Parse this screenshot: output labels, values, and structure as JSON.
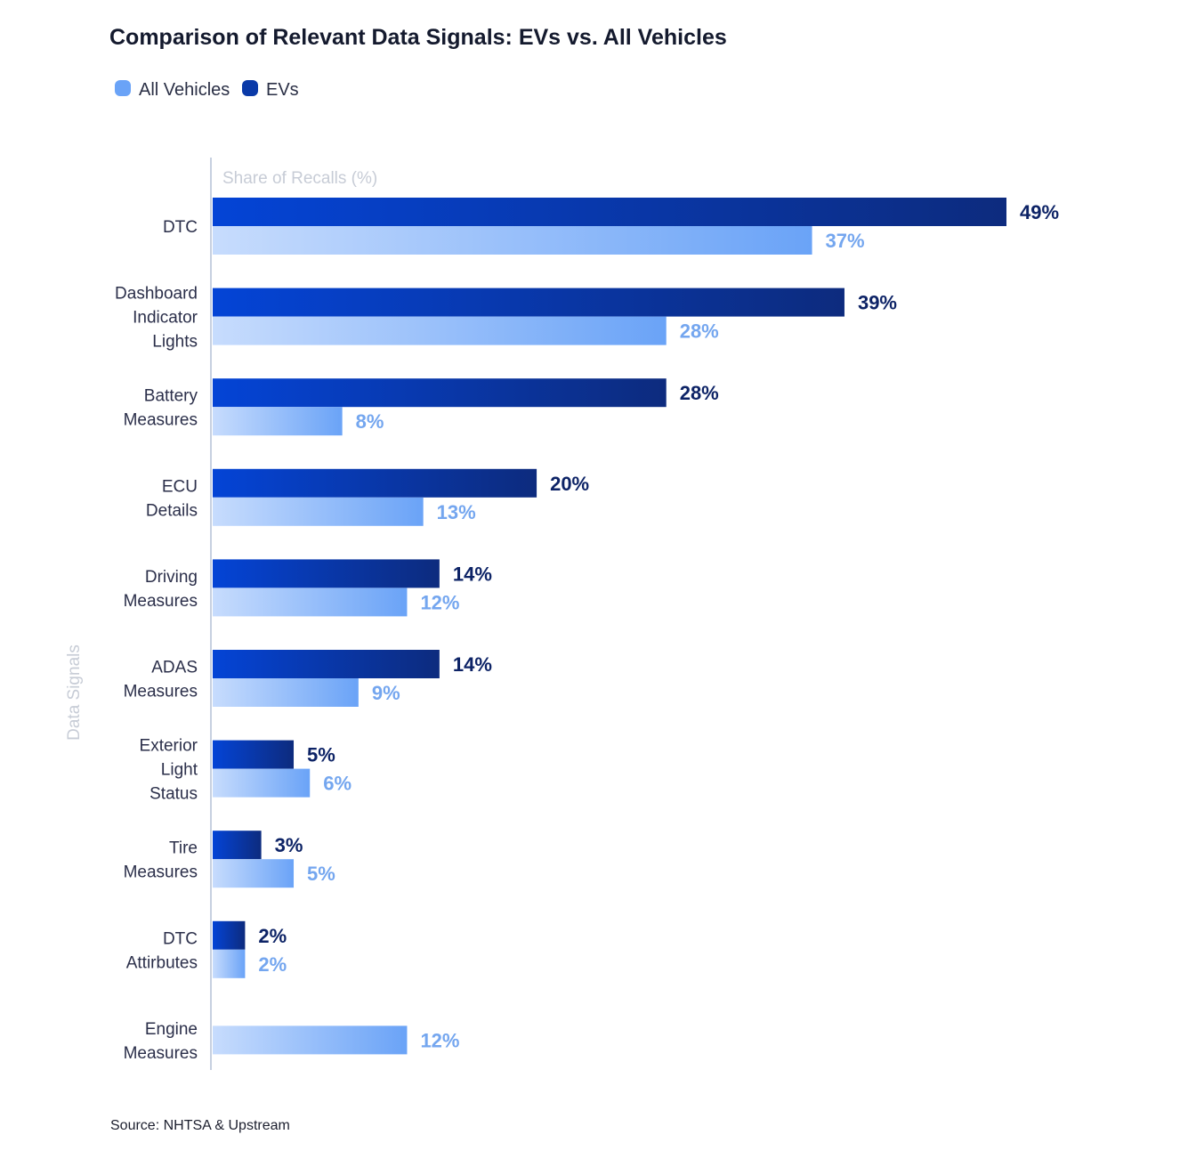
{
  "chart_data": {
    "type": "bar",
    "orientation": "horizontal",
    "title": "Comparison of Relevant Data Signals: EVs vs. All Vehicles",
    "xlabel": "Share of Recalls (%)",
    "ylabel": "Data Signals",
    "xlim": [
      0,
      49
    ],
    "legend_position": "top-left",
    "grid": false,
    "value_format": "{v}%",
    "categories": [
      [
        "DTC"
      ],
      [
        "Dashboard",
        "Indicator",
        "Lights"
      ],
      [
        "Battery",
        "Measures"
      ],
      [
        "ECU",
        "Details"
      ],
      [
        "Driving",
        "Measures"
      ],
      [
        "ADAS",
        "Measures"
      ],
      [
        "Exterior",
        "Light",
        "Status"
      ],
      [
        "Tire",
        "Measures"
      ],
      [
        "DTC",
        "Attirbutes"
      ],
      [
        "Engine",
        "Measures"
      ]
    ],
    "series": [
      {
        "name": "EVs",
        "color": "#0a3aa8",
        "values": [
          49,
          39,
          28,
          20,
          14,
          14,
          5,
          3,
          2,
          null
        ]
      },
      {
        "name": "All Vehicles",
        "color": "#6aa3f7",
        "values": [
          37,
          28,
          8,
          13,
          12,
          9,
          6,
          5,
          2,
          12
        ]
      }
    ],
    "source": "Source: NHTSA & Upstream"
  }
}
